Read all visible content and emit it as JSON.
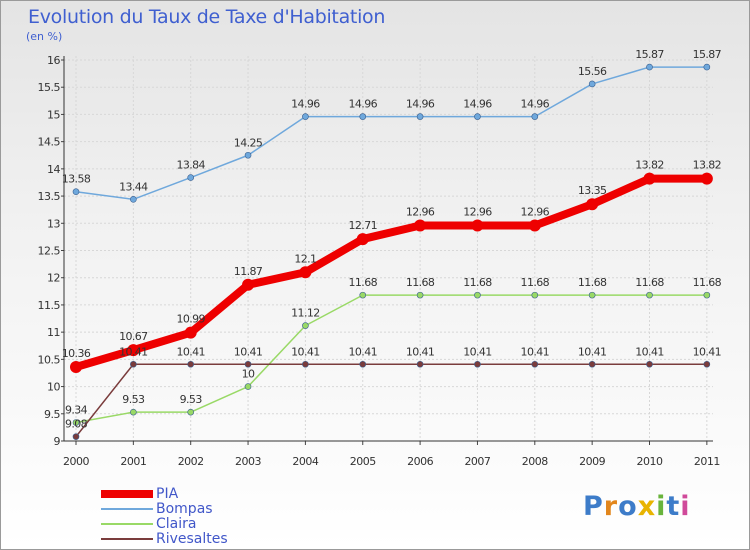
{
  "title": "Evolution du Taux de Taxe d'Habitation",
  "unit": "(en %)",
  "colors": {
    "PIA": "#ee0000",
    "Bompas": "#6fa8dc",
    "Claira": "#99d966",
    "Rivesaltes": "#7a3c3c"
  },
  "logo_text": [
    "P",
    "r",
    "o",
    "x",
    "i",
    "t",
    "i"
  ],
  "logo_colors": [
    "#3d7cc9",
    "#e2861c",
    "#3d7cc9",
    "#e8b400",
    "#69b43c",
    "#3d7cc9",
    "#d04a9a"
  ],
  "chart_data": {
    "type": "line",
    "title": "Evolution du Taux de Taxe d'Habitation",
    "ylabel": "(en %)",
    "ylim": [
      9,
      16
    ],
    "yticks": [
      "9",
      "9.5",
      "10",
      "10.5",
      "11",
      "11.5",
      "12",
      "12.5",
      "13",
      "13.5",
      "14",
      "14.5",
      "15",
      "15.5",
      "16"
    ],
    "x": [
      "2000",
      "2001",
      "2002",
      "2003",
      "2004",
      "2005",
      "2006",
      "2007",
      "2008",
      "2009",
      "2010",
      "2011"
    ],
    "legend_position": "bottom-left",
    "series": [
      {
        "name": "PIA",
        "values": [
          10.36,
          10.67,
          10.99,
          11.87,
          12.1,
          12.71,
          12.96,
          12.96,
          12.96,
          13.35,
          13.82,
          13.82
        ],
        "labels": [
          "10.36",
          "10.67",
          "10.99",
          "11.87",
          "12.1",
          "12.71",
          "12.96",
          "12.96",
          "12.96",
          "13.35",
          "13.82",
          "13.82"
        ]
      },
      {
        "name": "Bompas",
        "values": [
          13.58,
          13.44,
          13.84,
          14.25,
          14.96,
          14.96,
          14.96,
          14.96,
          14.96,
          15.56,
          15.87,
          15.87
        ],
        "labels": [
          "13.58",
          "13.44",
          "13.84",
          "14.25",
          "14.96",
          "14.96",
          "14.96",
          "14.96",
          "14.96",
          "15.56",
          "15.87",
          "15.87"
        ]
      },
      {
        "name": "Claira",
        "values": [
          9.34,
          9.53,
          9.53,
          10,
          11.12,
          11.68,
          11.68,
          11.68,
          11.68,
          11.68,
          11.68,
          11.68
        ],
        "labels": [
          "9.34",
          "9.53",
          "9.53",
          "10",
          "11.12",
          "11.68",
          "11.68",
          "11.68",
          "11.68",
          "11.68",
          "11.68",
          "11.68"
        ]
      },
      {
        "name": "Rivesaltes",
        "values": [
          9.08,
          10.41,
          10.41,
          10.41,
          10.41,
          10.41,
          10.41,
          10.41,
          10.41,
          10.41,
          10.41,
          10.41
        ],
        "labels": [
          "9.08",
          "10.41",
          "10.41",
          "10.41",
          "10.41",
          "10.41",
          "10.41",
          "10.41",
          "10.41",
          "10.41",
          "10.41",
          "10.41"
        ]
      }
    ]
  }
}
